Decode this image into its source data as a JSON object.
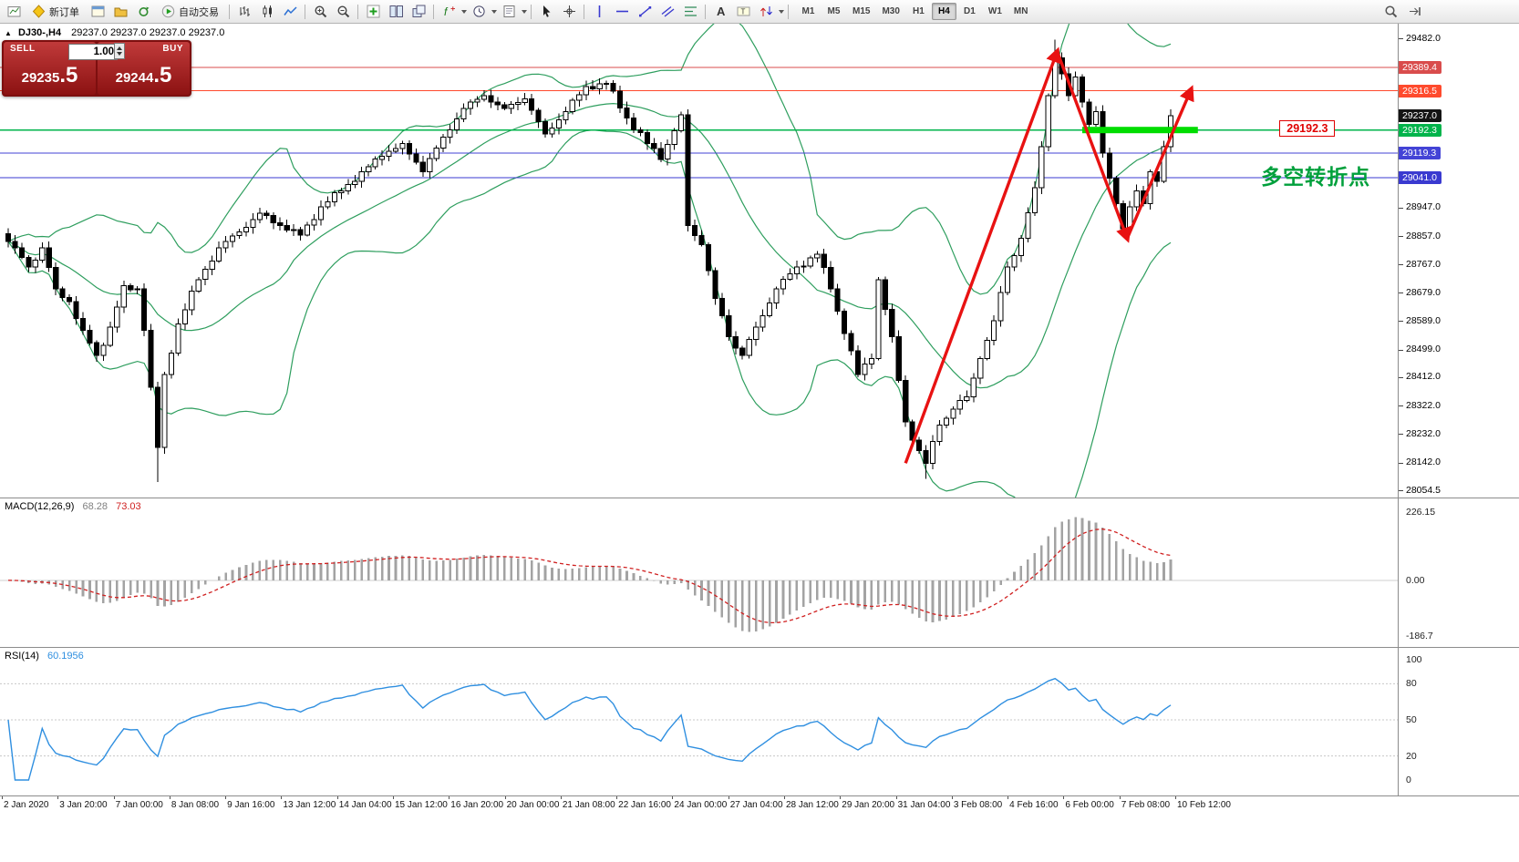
{
  "toolbar": {
    "new_order": "新订单",
    "autotrading": "自动交易",
    "timeframes": [
      "M1",
      "M5",
      "M15",
      "M30",
      "H1",
      "H4",
      "D1",
      "W1",
      "MN"
    ],
    "active_timeframe": "H4",
    "items": [
      {
        "t": "icon",
        "n": "app-chart"
      },
      {
        "t": "button",
        "n": "new-order",
        "label_key": "new_order",
        "icon": "new-order"
      },
      {
        "t": "icon",
        "n": "charts-window"
      },
      {
        "t": "icon",
        "n": "profiles"
      },
      {
        "t": "icon",
        "n": "refresh"
      },
      {
        "t": "button",
        "n": "autotrading",
        "label_key": "autotrading",
        "icon": "autotrading"
      },
      {
        "t": "sep"
      },
      {
        "t": "icon",
        "n": "bar-chart"
      },
      {
        "t": "icon",
        "n": "candlestick-chart"
      },
      {
        "t": "icon",
        "n": "line-chart"
      },
      {
        "t": "sep"
      },
      {
        "t": "icon",
        "n": "zoom-in"
      },
      {
        "t": "icon",
        "n": "zoom-out"
      },
      {
        "t": "sep"
      },
      {
        "t": "icon",
        "n": "indicators"
      },
      {
        "t": "icon",
        "n": "tile-windows"
      },
      {
        "t": "icon",
        "n": "cascade-windows"
      },
      {
        "t": "sep"
      },
      {
        "t": "icon",
        "n": "insert-indicator",
        "dd": true
      },
      {
        "t": "icon",
        "n": "periods",
        "dd": true
      },
      {
        "t": "icon",
        "n": "templates",
        "dd": true
      },
      {
        "t": "sep"
      },
      {
        "t": "icon",
        "n": "cursor"
      },
      {
        "t": "icon",
        "n": "crosshair"
      },
      {
        "t": "sep"
      },
      {
        "t": "icon",
        "n": "vertical-line"
      },
      {
        "t": "icon",
        "n": "horizontal-line"
      },
      {
        "t": "icon",
        "n": "trend-line"
      },
      {
        "t": "icon",
        "n": "channel"
      },
      {
        "t": "icon",
        "n": "fibonacci"
      },
      {
        "t": "sep"
      },
      {
        "t": "icon",
        "n": "text"
      },
      {
        "t": "icon",
        "n": "text-label"
      },
      {
        "t": "icon",
        "n": "arrows",
        "dd": true
      },
      {
        "t": "sep"
      },
      {
        "t": "tf"
      }
    ],
    "right_items": [
      {
        "t": "icon",
        "n": "search"
      },
      {
        "t": "icon",
        "n": "docking"
      }
    ]
  },
  "chart_header": {
    "collapse": "▲",
    "title": "DJ30-,H4",
    "ohlc": "29237.0 29237.0 29237.0 29237.0"
  },
  "one_click": {
    "sell": "SELL",
    "buy": "BUY",
    "volume": "1.00",
    "sell_price_main": "29235",
    "sell_price_frac": ".5",
    "buy_price_main": "29244",
    "buy_price_frac": ".5"
  },
  "chart_data": {
    "type": "candlestick",
    "symbol": "DJ30-",
    "period": "H4",
    "bars": 172,
    "price_axis": {
      "min": 28054.5,
      "max": 29482.0,
      "ticks": [
        {
          "label": "29482.0",
          "price": 29482.0
        },
        {
          "label": "28947.0",
          "price": 28947.0
        },
        {
          "label": "28857.0",
          "price": 28857.0
        },
        {
          "label": "28767.0",
          "price": 28767.0
        },
        {
          "label": "28679.0",
          "price": 28679.0
        },
        {
          "label": "28589.0",
          "price": 28589.0
        },
        {
          "label": "28499.0",
          "price": 28499.0
        },
        {
          "label": "28412.0",
          "price": 28412.0
        },
        {
          "label": "28322.0",
          "price": 28322.0
        },
        {
          "label": "28232.0",
          "price": 28232.0
        },
        {
          "label": "28142.0",
          "price": 28142.0
        },
        {
          "label": "28054.5",
          "price": 28054.5
        }
      ],
      "badges": [
        {
          "label": "29389.4",
          "price": 29389.4,
          "color": "#d94c4c"
        },
        {
          "label": "29316.5",
          "price": 29316.5,
          "color": "#ff4a2d"
        },
        {
          "label": "29237.0",
          "price": 29237.0,
          "color": "#141414"
        },
        {
          "label": "29192.3",
          "price": 29192.3,
          "color": "#00b44b"
        },
        {
          "label": "29119.3",
          "price": 29119.3,
          "color": "#4343d6"
        },
        {
          "label": "29041.0",
          "price": 29041.0,
          "color": "#3a3ad0"
        }
      ]
    },
    "levels": [
      {
        "price": 29389.4,
        "color": "#d94c4c",
        "width": 1
      },
      {
        "price": 29316.5,
        "color": "#ff4a2d",
        "width": 1
      },
      {
        "price": 29192.3,
        "color": "#00b44b",
        "width": 1.4
      },
      {
        "price": 29119.3,
        "color": "#4343d6",
        "width": 1
      },
      {
        "price": 29041.0,
        "color": "#3a3ad0",
        "width": 1
      }
    ],
    "close_anchors": [
      [
        0,
        28840
      ],
      [
        3,
        28760
      ],
      [
        5,
        28820
      ],
      [
        7,
        28690
      ],
      [
        9,
        28650
      ],
      [
        11,
        28560
      ],
      [
        13,
        28480
      ],
      [
        15,
        28570
      ],
      [
        17,
        28700
      ],
      [
        19,
        28690
      ],
      [
        20,
        28560
      ],
      [
        21,
        28380
      ],
      [
        22,
        28190
      ],
      [
        23,
        28420
      ],
      [
        25,
        28580
      ],
      [
        28,
        28720
      ],
      [
        31,
        28820
      ],
      [
        34,
        28870
      ],
      [
        37,
        28930
      ],
      [
        40,
        28890
      ],
      [
        43,
        28860
      ],
      [
        46,
        28950
      ],
      [
        49,
        29000
      ],
      [
        52,
        29060
      ],
      [
        55,
        29110
      ],
      [
        58,
        29150
      ],
      [
        61,
        29060
      ],
      [
        64,
        29170
      ],
      [
        67,
        29260
      ],
      [
        70,
        29300
      ],
      [
        73,
        29260
      ],
      [
        76,
        29290
      ],
      [
        79,
        29180
      ],
      [
        82,
        29250
      ],
      [
        85,
        29330
      ],
      [
        88,
        29340
      ],
      [
        91,
        29230
      ],
      [
        94,
        29150
      ],
      [
        96,
        29100
      ],
      [
        99,
        29240
      ],
      [
        100,
        28890
      ],
      [
        102,
        28830
      ],
      [
        104,
        28660
      ],
      [
        106,
        28540
      ],
      [
        108,
        28480
      ],
      [
        110,
        28570
      ],
      [
        113,
        28690
      ],
      [
        116,
        28760
      ],
      [
        119,
        28800
      ],
      [
        121,
        28690
      ],
      [
        123,
        28550
      ],
      [
        125,
        28420
      ],
      [
        127,
        28470
      ],
      [
        128,
        28720
      ],
      [
        130,
        28540
      ],
      [
        132,
        28270
      ],
      [
        134,
        28180
      ],
      [
        135,
        28140
      ],
      [
        137,
        28260
      ],
      [
        139,
        28310
      ],
      [
        141,
        28350
      ],
      [
        143,
        28470
      ],
      [
        145,
        28590
      ],
      [
        147,
        28760
      ],
      [
        149,
        28850
      ],
      [
        151,
        29010
      ],
      [
        152,
        29140
      ],
      [
        153,
        29300
      ],
      [
        154,
        29420
      ],
      [
        155,
        29370
      ],
      [
        156,
        29300
      ],
      [
        157,
        29360
      ],
      [
        158,
        29280
      ],
      [
        159,
        29210
      ],
      [
        160,
        29250
      ],
      [
        161,
        29120
      ],
      [
        162,
        29040
      ],
      [
        163,
        28960
      ],
      [
        164,
        28880
      ],
      [
        165,
        28950
      ],
      [
        166,
        29000
      ],
      [
        167,
        28960
      ],
      [
        168,
        29060
      ],
      [
        169,
        29030
      ],
      [
        170,
        29140
      ],
      [
        171,
        29237
      ]
    ],
    "wick_overrides": [
      {
        "bar": 22,
        "low": 28080
      },
      {
        "bar": 135,
        "low": 28090
      },
      {
        "bar": 154,
        "high": 29478
      }
    ],
    "time_labels": [
      "2 Jan 2020",
      "3 Jan 20:00",
      "7 Jan 00:00",
      "8 Jan 08:00",
      "9 Jan 16:00",
      "13 Jan 12:00",
      "14 Jan 04:00",
      "15 Jan 12:00",
      "16 Jan 20:00",
      "20 Jan 00:00",
      "21 Jan 08:00",
      "22 Jan 16:00",
      "24 Jan 00:00",
      "27 Jan 04:00",
      "28 Jan 12:00",
      "29 Jan 20:00",
      "31 Jan 04:00",
      "3 Feb 08:00",
      "4 Feb 16:00",
      "6 Feb 00:00",
      "7 Feb 08:00",
      "10 Feb 12:00"
    ],
    "annotations": {
      "zigzag": {
        "color": "#e81212",
        "points": [
          [
            132,
            28140
          ],
          [
            154.3,
            29440
          ],
          [
            164.6,
            28850
          ],
          [
            174,
            29320
          ]
        ]
      },
      "highlight": {
        "from_bar": 158,
        "to_bar": 175,
        "price": 29192.3,
        "color": "#00dd00",
        "thickness": 7
      },
      "price_label": {
        "text": "29192.3",
        "color": "#e00000",
        "bar": 187,
        "price": 29192.3
      },
      "note": {
        "text": "多空转折点",
        "color": "#00a03c",
        "bar": 184.3,
        "price": 29058
      }
    },
    "indicators": {
      "bollinger": {
        "period": 20,
        "deviation": 2,
        "color": "#2e9e5e"
      },
      "macd": {
        "label": "MACD(12,26,9)",
        "value_main": "68.28",
        "value_signal": "73.03",
        "scale_top": "226.15",
        "scale_zero": "0.00",
        "scale_bottom": "-186.7",
        "histogram_color": "#a3a3a3",
        "signal_color": "#d02020"
      },
      "rsi": {
        "label": "RSI(14)",
        "value": "60.1956",
        "color": "#2f8fe0",
        "scale": [
          {
            "label": "100",
            "v": 100
          },
          {
            "label": "80",
            "v": 80
          },
          {
            "label": "50",
            "v": 50
          },
          {
            "label": "20",
            "v": 20
          },
          {
            "label": "0",
            "v": 0
          }
        ],
        "levels": [
          80,
          50,
          20
        ]
      }
    }
  }
}
